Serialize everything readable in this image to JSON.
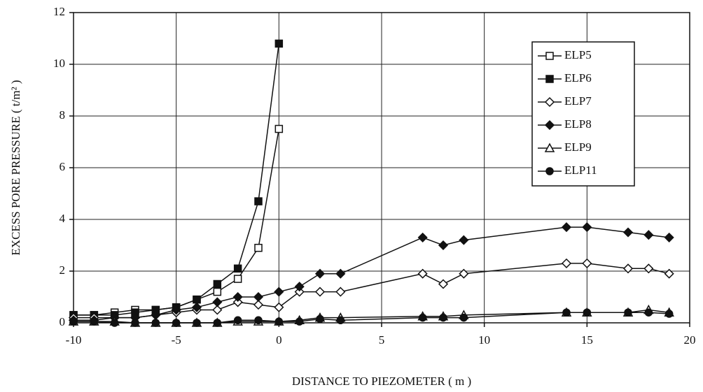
{
  "chart_data": {
    "type": "line",
    "xlabel": "DISTANCE TO PIEZOMETER ( m )",
    "ylabel": "EXCESS PORE PRESSURE ( t/m² )",
    "xlim": [
      -10,
      20
    ],
    "xticks": [
      -10,
      -5,
      0,
      5,
      10,
      15,
      20
    ],
    "ylim": [
      0,
      12
    ],
    "yticks": [
      0,
      2,
      4,
      6,
      8,
      10,
      12
    ],
    "grid": true,
    "legend": "upper right",
    "series": [
      {
        "name": "ELP5",
        "color": "#111111",
        "marker": "square-open",
        "x": [
          -10,
          -9,
          -8,
          -7,
          -6,
          -5,
          -4,
          -3,
          -2,
          -1,
          0
        ],
        "values": [
          0.3,
          0.3,
          0.4,
          0.5,
          0.5,
          0.6,
          0.9,
          1.2,
          1.7,
          2.9,
          7.5
        ]
      },
      {
        "name": "ELP6",
        "color": "#111111",
        "marker": "square-filled",
        "x": [
          -10,
          -9,
          -8,
          -7,
          -6,
          -5,
          -4,
          -3,
          -2,
          -1,
          0
        ],
        "values": [
          0.3,
          0.3,
          0.3,
          0.4,
          0.5,
          0.6,
          0.9,
          1.5,
          2.1,
          4.7,
          10.8
        ]
      },
      {
        "name": "ELP7",
        "color": "#111111",
        "marker": "diamond-open",
        "x": [
          -10,
          -9,
          -8,
          -7,
          -6,
          -5,
          -4,
          -3,
          -2,
          -1,
          0,
          1,
          2,
          3,
          7,
          8,
          9,
          14,
          15,
          17,
          18,
          19
        ],
        "values": [
          0.2,
          0.2,
          0.2,
          0.2,
          0.3,
          0.4,
          0.5,
          0.5,
          0.8,
          0.7,
          0.6,
          1.2,
          1.2,
          1.2,
          1.9,
          1.5,
          1.9,
          2.3,
          2.3,
          2.1,
          2.1,
          1.9
        ]
      },
      {
        "name": "ELP8",
        "color": "#111111",
        "marker": "diamond-filled",
        "x": [
          -10,
          -9,
          -8,
          -7,
          -6,
          -5,
          -4,
          -3,
          -2,
          -1,
          0,
          1,
          2,
          3,
          7,
          8,
          9,
          14,
          15,
          17,
          18,
          19
        ],
        "values": [
          0.1,
          0.1,
          0.2,
          0.2,
          0.3,
          0.5,
          0.6,
          0.8,
          1.0,
          1.0,
          1.2,
          1.4,
          1.9,
          1.9,
          3.3,
          3.0,
          3.2,
          3.7,
          3.7,
          3.5,
          3.4,
          3.3
        ]
      },
      {
        "name": "ELP9",
        "color": "#111111",
        "marker": "triangle-open",
        "x": [
          -10,
          -9,
          -8,
          -7,
          -6,
          -5,
          -4,
          -3,
          -2,
          -1,
          0,
          1,
          2,
          3,
          7,
          8,
          9,
          14,
          15,
          17,
          18,
          19
        ],
        "values": [
          0.05,
          0.05,
          0.05,
          0,
          0,
          0,
          0,
          0,
          0.05,
          0.05,
          0.05,
          0.1,
          0.2,
          0.2,
          0.25,
          0.25,
          0.3,
          0.4,
          0.4,
          0.4,
          0.5,
          0.4
        ]
      },
      {
        "name": "ELP11",
        "color": "#111111",
        "marker": "circle-filled",
        "x": [
          -10,
          -9,
          -8,
          -7,
          -6,
          -5,
          -4,
          -3,
          -2,
          -1,
          0,
          1,
          2,
          3,
          7,
          8,
          9,
          14,
          15,
          17,
          18,
          19
        ],
        "values": [
          0.05,
          0.05,
          0,
          0,
          0,
          0,
          0,
          0,
          0.1,
          0.1,
          0.05,
          0.05,
          0.15,
          0.1,
          0.2,
          0.2,
          0.2,
          0.4,
          0.4,
          0.4,
          0.4,
          0.35
        ]
      }
    ]
  }
}
